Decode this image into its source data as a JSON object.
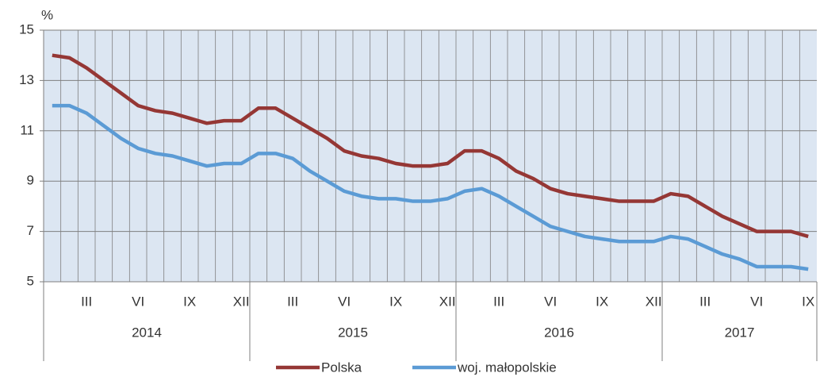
{
  "chart_data": {
    "type": "line",
    "y_axis_label": "%",
    "categories": [
      null,
      null,
      "III",
      null,
      null,
      "VI",
      null,
      null,
      "IX",
      null,
      null,
      "XII",
      null,
      null,
      "III",
      null,
      null,
      "VI",
      null,
      null,
      "IX",
      null,
      null,
      "XII",
      null,
      null,
      "III",
      null,
      null,
      "VI",
      null,
      null,
      "IX",
      null,
      null,
      "XII",
      null,
      null,
      "III",
      null,
      null,
      "VI",
      null,
      null,
      "IX"
    ],
    "years": [
      "2014",
      "2015",
      "2016",
      "2017"
    ],
    "series": [
      {
        "name": "Polska",
        "color": "#953735",
        "values": [
          14.0,
          13.9,
          13.5,
          13.0,
          12.5,
          12.0,
          11.8,
          11.7,
          11.5,
          11.3,
          11.4,
          11.4,
          11.9,
          11.9,
          11.5,
          11.1,
          10.7,
          10.2,
          10.0,
          9.9,
          9.7,
          9.6,
          9.6,
          9.7,
          10.2,
          10.2,
          9.9,
          9.4,
          9.1,
          8.7,
          8.5,
          8.4,
          8.3,
          8.2,
          8.2,
          8.2,
          8.5,
          8.4,
          8.0,
          7.6,
          7.3,
          7.0,
          7.0,
          7.0,
          6.8
        ]
      },
      {
        "name": "woj. małopolskie",
        "color": "#5b9bd5",
        "values": [
          12.0,
          12.0,
          11.7,
          11.2,
          10.7,
          10.3,
          10.1,
          10.0,
          9.8,
          9.6,
          9.7,
          9.7,
          10.1,
          10.1,
          9.9,
          9.4,
          9.0,
          8.6,
          8.4,
          8.3,
          8.3,
          8.2,
          8.2,
          8.3,
          8.6,
          8.7,
          8.4,
          8.0,
          7.6,
          7.2,
          7.0,
          6.8,
          6.7,
          6.6,
          6.6,
          6.6,
          6.8,
          6.7,
          6.4,
          6.1,
          5.9,
          5.6,
          5.6,
          5.6,
          5.5
        ]
      }
    ],
    "ylim": [
      5,
      15
    ],
    "yticks": [
      5,
      7,
      9,
      11,
      13,
      15
    ],
    "grid": true,
    "legend": "bottom"
  }
}
